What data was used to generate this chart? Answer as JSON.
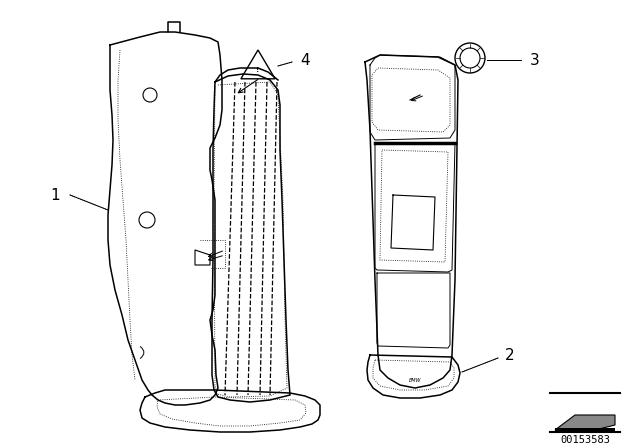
{
  "bg_color": "#ffffff",
  "line_color": "#000000",
  "diagram_number": "00153583",
  "fig_width": 6.4,
  "fig_height": 4.48,
  "lw_main": 1.1,
  "lw_thin": 0.7,
  "lw_dotted": 0.6
}
